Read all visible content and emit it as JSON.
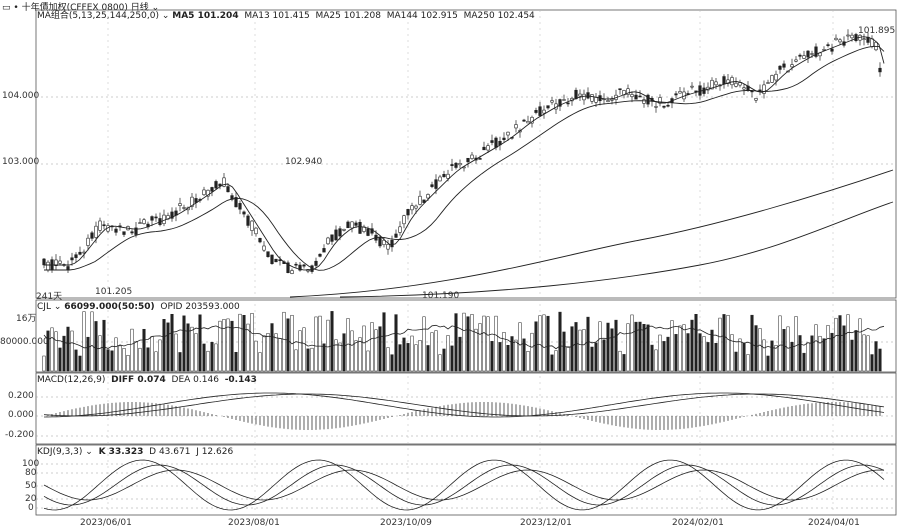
{
  "title_bar": {
    "icon": "grid-icon",
    "instrument": "十年債加权(CFFEX 0800)",
    "period": "日线"
  },
  "price_pane": {
    "indicator": "MA组合(5,13,25,144,250,0)",
    "ma5": "MA5 101.204",
    "ma13": "MA13 101.415",
    "ma25": "MA25 101.208",
    "ma144": "MA144 102.915",
    "ma250": "MA250 102.454",
    "y_ticks": [
      "104.000",
      "103.000"
    ],
    "annotations": {
      "high": "101.895",
      "mid_high": "102.940",
      "low1": "101.205",
      "low2": "101.190",
      "days": "241天"
    }
  },
  "volume_pane": {
    "indicator": "CJL",
    "value": "66099.000(50:50)",
    "opid": "OPID 203593.000",
    "unit_label": "16万",
    "y_tick": "80000.000"
  },
  "macd_pane": {
    "indicator": "MACD(12,26,9)",
    "diff": "DIFF 0.074",
    "dea": "DEA 0.146",
    "macd": "-0.143",
    "y_ticks": [
      "0.200",
      "0.000",
      "-0.200"
    ]
  },
  "kdj_pane": {
    "indicator": "KDJ(9,3,3)",
    "k": "K 33.323",
    "d": "D 43.671",
    "j": "J 12.626",
    "y_ticks": [
      "100",
      "80",
      "50",
      "20",
      "0"
    ]
  },
  "x_axis": [
    "2023/06/01",
    "2023/08/01",
    "2023/10/09",
    "2023/12/01",
    "2024/02/01",
    "2024/04/01"
  ],
  "colors": {
    "line": "#222222",
    "grid": "#999999",
    "frame": "#555555"
  }
}
